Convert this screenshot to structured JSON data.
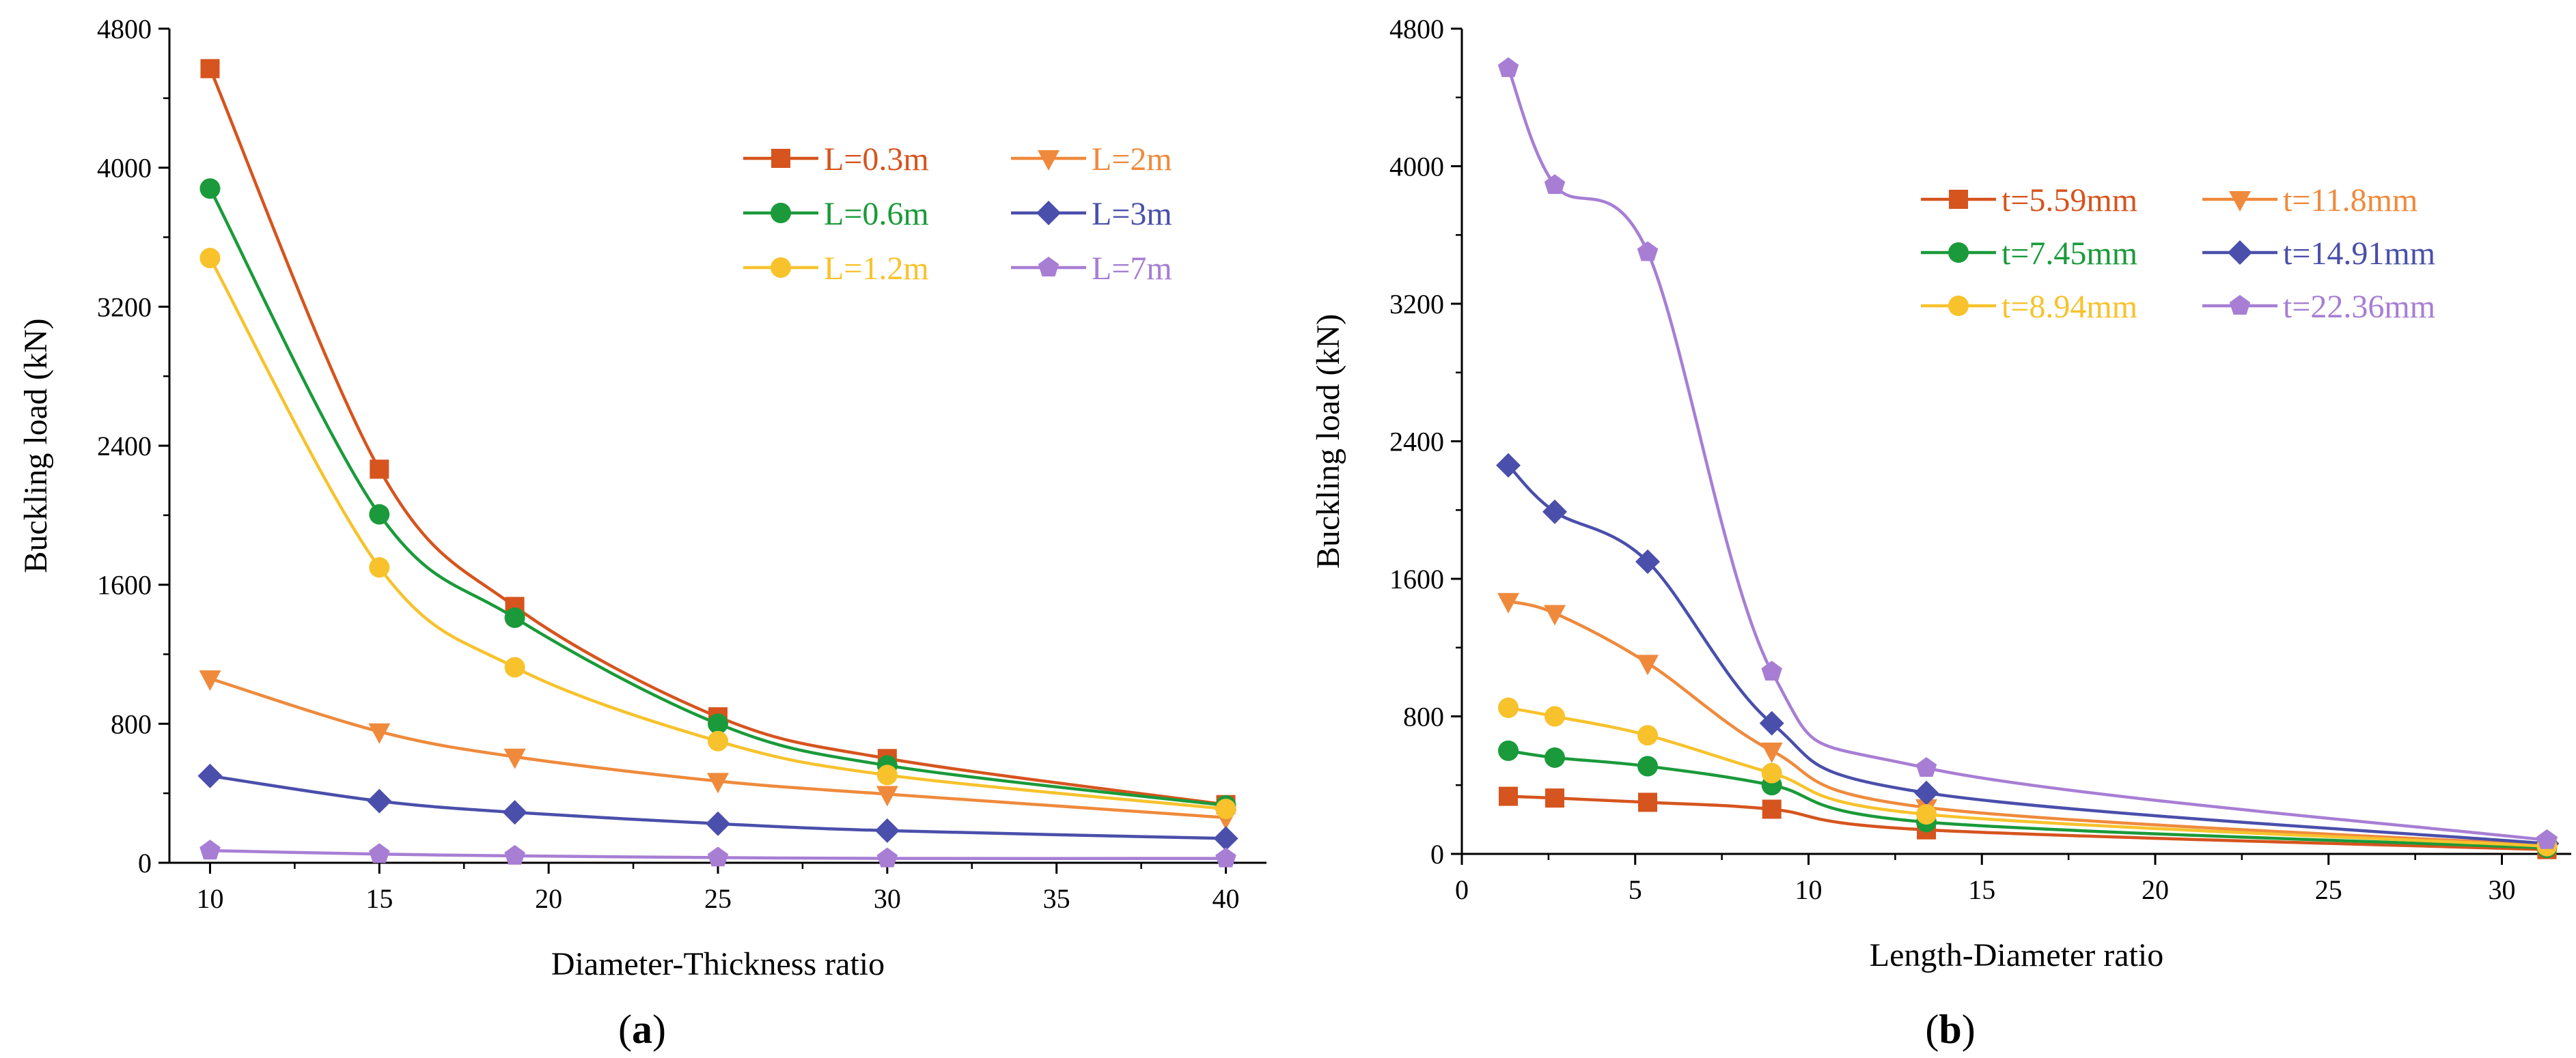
{
  "chart_data": [
    {
      "type": "line",
      "caption": "(a)",
      "caption_letter": "a",
      "xlabel": "Diameter-Thickness ratio",
      "ylabel": "Buckling load (kN)",
      "xlim": [
        8.8,
        41.2
      ],
      "ylim": [
        0,
        4800
      ],
      "xticks": [
        10,
        15,
        20,
        25,
        30,
        35,
        40
      ],
      "yticks": [
        0,
        800,
        1600,
        2400,
        3200,
        4000,
        4800
      ],
      "x": [
        10,
        15,
        19,
        25,
        30,
        40
      ],
      "legend_position": "top-right",
      "series": [
        {
          "name": "L=0.3m",
          "color": "#d6541e",
          "marker": "square",
          "values": [
            4570,
            2265,
            1475,
            840,
            600,
            335
          ]
        },
        {
          "name": "L=2m",
          "color": "#ef8a3c",
          "marker": "triangle",
          "values": [
            1060,
            755,
            610,
            470,
            395,
            260
          ]
        },
        {
          "name": "L=0.6m",
          "color": "#1a9a3a",
          "marker": "circle",
          "values": [
            3880,
            2005,
            1410,
            800,
            560,
            330
          ]
        },
        {
          "name": "L=3m",
          "color": "#4a4fab",
          "marker": "diamond",
          "values": [
            500,
            355,
            290,
            225,
            185,
            140
          ]
        },
        {
          "name": "L=1.2m",
          "color": "#f7c22c",
          "marker": "circle",
          "values": [
            3480,
            1700,
            1125,
            700,
            505,
            310
          ]
        },
        {
          "name": "L=7m",
          "color": "#a77ed4",
          "marker": "pentagon",
          "values": [
            70,
            50,
            40,
            30,
            25,
            25
          ]
        }
      ]
    },
    {
      "type": "line",
      "caption": "(b)",
      "caption_letter": "b",
      "xlabel": "Length-Diameter ratio",
      "ylabel": "Buckling load (kN)",
      "xlim": [
        0,
        32
      ],
      "ylim": [
        0,
        4800
      ],
      "xticks": [
        0,
        5,
        10,
        15,
        20,
        25,
        30
      ],
      "yticks": [
        0,
        800,
        1600,
        2400,
        3200,
        4000,
        4800
      ],
      "x": [
        1.34,
        2.68,
        5.36,
        8.94,
        13.4,
        31.3
      ],
      "legend_position": "top-right",
      "series": [
        {
          "name": "t=5.59mm",
          "color": "#d6541e",
          "marker": "square",
          "values": [
            335,
            325,
            300,
            260,
            140,
            25
          ]
        },
        {
          "name": "t=11.8mm",
          "color": "#ef8a3c",
          "marker": "triangle",
          "values": [
            1470,
            1400,
            1110,
            600,
            270,
            50
          ]
        },
        {
          "name": "t=7.45mm",
          "color": "#1a9a3a",
          "marker": "circle",
          "values": [
            600,
            560,
            510,
            400,
            185,
            35
          ]
        },
        {
          "name": "t=14.91mm",
          "color": "#4a4fab",
          "marker": "diamond",
          "values": [
            2260,
            1990,
            1700,
            760,
            355,
            60
          ]
        },
        {
          "name": "t=8.94mm",
          "color": "#f7c22c",
          "marker": "circle",
          "values": [
            850,
            800,
            690,
            470,
            230,
            45
          ]
        },
        {
          "name": "t=22.36mm",
          "color": "#a77ed4",
          "marker": "pentagon",
          "values": [
            4570,
            3890,
            3500,
            1060,
            500,
            80
          ]
        }
      ]
    }
  ]
}
